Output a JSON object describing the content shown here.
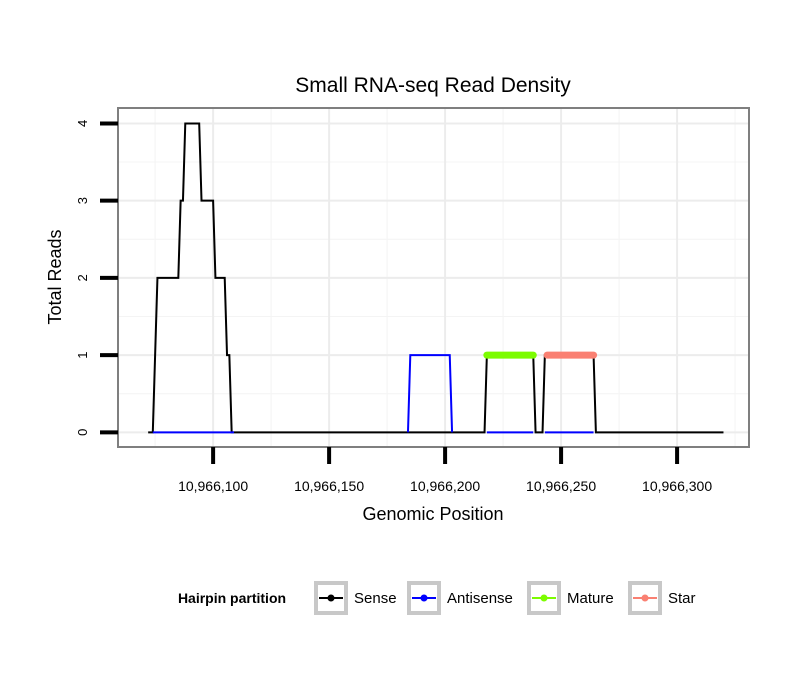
{
  "chart_data": {
    "type": "line",
    "title": "Small RNA-seq Read Density",
    "xlabel": "Genomic Position",
    "ylabel": "Total Reads",
    "xlim": [
      10966059,
      10966331
    ],
    "ylim": [
      -0.19,
      4.2
    ],
    "x_ticks": [
      10966100,
      10966150,
      10966200,
      10966250,
      10966300
    ],
    "x_tick_labels": [
      "10,966,100",
      "10,966,150",
      "10,966,200",
      "10,966,250",
      "10,966,300"
    ],
    "y_ticks": [
      0,
      1,
      2,
      3,
      4
    ],
    "y_tick_labels": [
      "0",
      "1",
      "2",
      "3",
      "4"
    ],
    "grid": true,
    "legend": {
      "title": "Hairpin partition",
      "position": "bottom",
      "entries": [
        {
          "name": "Sense",
          "color": "#000000"
        },
        {
          "name": "Antisense",
          "color": "#0000ff"
        },
        {
          "name": "Mature",
          "color": "#7cfc00"
        },
        {
          "name": "Star",
          "color": "#fa8072"
        }
      ]
    },
    "series": [
      {
        "name": "Sense",
        "color": "#000000",
        "points": [
          [
            10966072,
            0
          ],
          [
            10966074,
            0
          ],
          [
            10966076,
            2
          ],
          [
            10966085,
            2
          ],
          [
            10966086,
            3
          ],
          [
            10966087,
            3
          ],
          [
            10966088,
            4
          ],
          [
            10966094,
            4
          ],
          [
            10966095,
            3
          ],
          [
            10966100,
            3
          ],
          [
            10966101,
            2
          ],
          [
            10966105,
            2
          ],
          [
            10966106,
            1
          ],
          [
            10966107,
            1
          ],
          [
            10966108,
            0
          ],
          [
            10966217,
            0
          ],
          [
            10966218,
            1
          ],
          [
            10966238,
            1
          ],
          [
            10966239,
            0
          ],
          [
            10966242,
            0
          ],
          [
            10966243,
            1
          ],
          [
            10966264,
            1
          ],
          [
            10966265,
            0
          ],
          [
            10966320,
            0
          ]
        ]
      },
      {
        "name": "Antisense",
        "color": "#0000ff",
        "points": [
          [
            10966074,
            0
          ],
          [
            10966109,
            0
          ]
        ]
      },
      {
        "name": "Antisense",
        "color": "#0000ff",
        "points": [
          [
            10966184,
            0
          ],
          [
            10966185,
            1
          ],
          [
            10966202,
            1
          ],
          [
            10966203,
            0
          ]
        ]
      },
      {
        "name": "Antisense",
        "color": "#0000ff",
        "points": [
          [
            10966218,
            0
          ],
          [
            10966238,
            0
          ]
        ]
      },
      {
        "name": "Antisense",
        "color": "#0000ff",
        "points": [
          [
            10966243,
            0
          ],
          [
            10966264,
            0
          ]
        ]
      },
      {
        "name": "Mature",
        "color": "#7cfc00",
        "points": [
          [
            10966218,
            1
          ],
          [
            10966238,
            1
          ]
        ]
      },
      {
        "name": "Star",
        "color": "#fa8072",
        "points": [
          [
            10966244,
            1
          ],
          [
            10966264,
            1
          ]
        ]
      }
    ]
  }
}
